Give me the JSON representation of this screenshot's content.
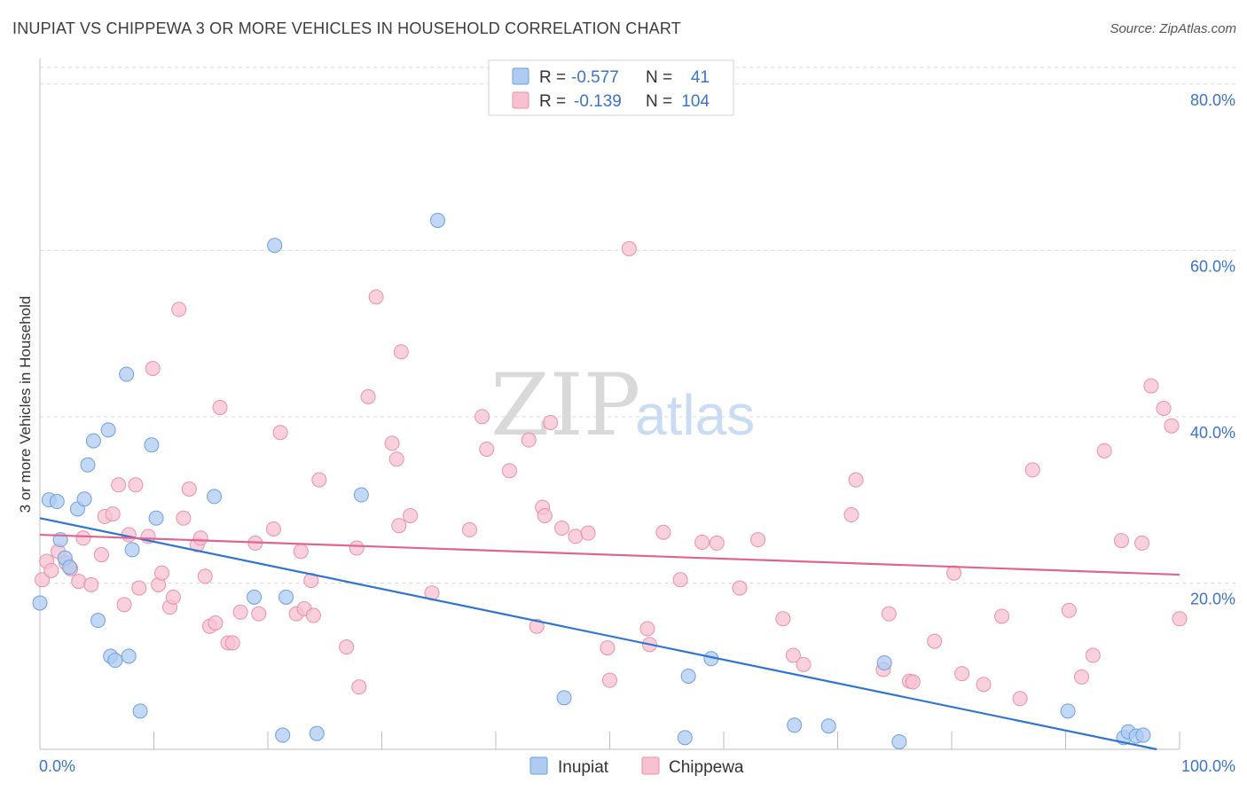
{
  "title": "INUPIAT VS CHIPPEWA 3 OR MORE VEHICLES IN HOUSEHOLD CORRELATION CHART",
  "source": "Source: ZipAtlas.com",
  "watermark": {
    "zip": "ZIP",
    "atlas": "atlas"
  },
  "colors": {
    "inupiat_fill": "#aecbf2",
    "inupiat_stroke": "#6f9fdc",
    "inupiat_line": "#2f74d0",
    "chippewa_fill": "#f7c1d1",
    "chippewa_stroke": "#e98fab",
    "chippewa_line": "#e0648f",
    "grid": "#d9d9d9",
    "axis_text": "#3b73c8"
  },
  "legend": {
    "rows": [
      {
        "r_label": "R =",
        "r_value": "-0.577",
        "n_label": "N =",
        "n_value": "41"
      },
      {
        "r_label": "R =",
        "r_value": "-0.139",
        "n_label": "N =",
        "n_value": "104"
      }
    ]
  },
  "bottom_legend": [
    "Inupiat",
    "Chippewa"
  ],
  "chart_data": {
    "type": "scatter",
    "title": "INUPIAT VS CHIPPEWA 3 OR MORE VEHICLES IN HOUSEHOLD CORRELATION CHART",
    "xlabel": "",
    "ylabel": "3 or more Vehicles in Household",
    "xlim": [
      0,
      100
    ],
    "ylim": [
      0,
      82
    ],
    "x_tick_labels": [
      "0.0%",
      "100.0%"
    ],
    "y_ticks": [
      20,
      40,
      60,
      80
    ],
    "y_tick_labels": [
      "20.0%",
      "40.0%",
      "60.0%",
      "80.0%"
    ],
    "grid": true,
    "legend_position": "top-center",
    "series": [
      {
        "name": "Inupiat",
        "trend": {
          "x": [
            0,
            98
          ],
          "y": [
            27.8,
            0.0
          ]
        },
        "points": [
          [
            0.0,
            17.6
          ],
          [
            0.8,
            30.0
          ],
          [
            1.5,
            29.8
          ],
          [
            1.8,
            25.2
          ],
          [
            2.2,
            23.0
          ],
          [
            2.6,
            21.9
          ],
          [
            3.3,
            28.9
          ],
          [
            3.9,
            30.1
          ],
          [
            4.2,
            34.2
          ],
          [
            4.7,
            37.1
          ],
          [
            5.1,
            15.5
          ],
          [
            6.0,
            38.4
          ],
          [
            6.2,
            11.2
          ],
          [
            6.6,
            10.7
          ],
          [
            7.8,
            11.2
          ],
          [
            7.6,
            45.1
          ],
          [
            8.1,
            24.0
          ],
          [
            8.8,
            4.6
          ],
          [
            9.8,
            36.6
          ],
          [
            10.2,
            27.8
          ],
          [
            15.3,
            30.4
          ],
          [
            18.8,
            18.3
          ],
          [
            20.6,
            60.6
          ],
          [
            21.3,
            1.7
          ],
          [
            21.6,
            18.3
          ],
          [
            24.3,
            1.9
          ],
          [
            28.2,
            30.6
          ],
          [
            34.9,
            63.6
          ],
          [
            46.0,
            6.2
          ],
          [
            56.6,
            1.4
          ],
          [
            56.9,
            8.8
          ],
          [
            58.9,
            10.9
          ],
          [
            66.2,
            2.9
          ],
          [
            69.2,
            2.8
          ],
          [
            74.1,
            10.4
          ],
          [
            75.4,
            0.9
          ],
          [
            90.2,
            4.6
          ],
          [
            95.1,
            1.4
          ],
          [
            95.5,
            2.1
          ],
          [
            96.2,
            1.6
          ],
          [
            96.8,
            1.7
          ]
        ]
      },
      {
        "name": "Chippewa",
        "trend": {
          "x": [
            0,
            100
          ],
          "y": [
            25.8,
            21.0
          ]
        },
        "points": [
          [
            0.2,
            20.4
          ],
          [
            0.6,
            22.6
          ],
          [
            1.0,
            21.5
          ],
          [
            1.6,
            23.8
          ],
          [
            2.3,
            22.4
          ],
          [
            2.7,
            21.7
          ],
          [
            3.4,
            20.2
          ],
          [
            3.8,
            25.4
          ],
          [
            4.5,
            19.8
          ],
          [
            5.4,
            23.4
          ],
          [
            5.7,
            28.0
          ],
          [
            6.4,
            28.3
          ],
          [
            6.9,
            31.8
          ],
          [
            7.4,
            17.4
          ],
          [
            7.8,
            25.8
          ],
          [
            8.4,
            31.8
          ],
          [
            8.7,
            19.4
          ],
          [
            9.5,
            25.6
          ],
          [
            9.9,
            45.8
          ],
          [
            10.4,
            19.8
          ],
          [
            10.7,
            21.2
          ],
          [
            11.4,
            17.1
          ],
          [
            11.7,
            18.3
          ],
          [
            12.2,
            52.9
          ],
          [
            12.6,
            27.8
          ],
          [
            13.1,
            31.3
          ],
          [
            13.8,
            24.6
          ],
          [
            14.1,
            25.4
          ],
          [
            14.5,
            20.8
          ],
          [
            14.9,
            14.8
          ],
          [
            15.4,
            15.2
          ],
          [
            15.8,
            41.1
          ],
          [
            16.5,
            12.8
          ],
          [
            16.9,
            12.8
          ],
          [
            17.6,
            16.5
          ],
          [
            18.9,
            24.8
          ],
          [
            19.2,
            16.3
          ],
          [
            20.5,
            26.5
          ],
          [
            21.1,
            38.1
          ],
          [
            22.5,
            16.3
          ],
          [
            22.9,
            23.8
          ],
          [
            23.2,
            16.9
          ],
          [
            23.8,
            20.3
          ],
          [
            24.0,
            16.1
          ],
          [
            24.5,
            32.4
          ],
          [
            26.9,
            12.3
          ],
          [
            27.8,
            24.2
          ],
          [
            28.0,
            7.5
          ],
          [
            28.8,
            42.4
          ],
          [
            29.5,
            54.4
          ],
          [
            30.9,
            36.8
          ],
          [
            31.3,
            34.9
          ],
          [
            31.5,
            26.9
          ],
          [
            31.7,
            47.8
          ],
          [
            32.5,
            28.1
          ],
          [
            34.4,
            18.8
          ],
          [
            37.7,
            26.4
          ],
          [
            38.8,
            40.0
          ],
          [
            39.2,
            36.1
          ],
          [
            41.2,
            33.5
          ],
          [
            42.9,
            37.2
          ],
          [
            43.6,
            14.8
          ],
          [
            44.1,
            29.1
          ],
          [
            44.3,
            28.1
          ],
          [
            44.8,
            39.3
          ],
          [
            45.8,
            26.6
          ],
          [
            47.0,
            25.6
          ],
          [
            48.1,
            26.0
          ],
          [
            49.8,
            12.2
          ],
          [
            50.0,
            8.3
          ],
          [
            51.7,
            60.2
          ],
          [
            53.3,
            14.5
          ],
          [
            53.5,
            12.6
          ],
          [
            54.7,
            26.1
          ],
          [
            56.2,
            20.4
          ],
          [
            58.1,
            24.9
          ],
          [
            59.4,
            24.8
          ],
          [
            61.4,
            19.4
          ],
          [
            63.0,
            25.2
          ],
          [
            65.2,
            15.7
          ],
          [
            66.1,
            11.3
          ],
          [
            67.0,
            10.2
          ],
          [
            71.2,
            28.2
          ],
          [
            71.6,
            32.4
          ],
          [
            74.0,
            9.6
          ],
          [
            74.5,
            16.3
          ],
          [
            76.3,
            8.2
          ],
          [
            76.6,
            8.1
          ],
          [
            78.5,
            13.0
          ],
          [
            80.2,
            21.2
          ],
          [
            80.9,
            9.1
          ],
          [
            82.8,
            7.8
          ],
          [
            84.4,
            16.0
          ],
          [
            86.0,
            6.1
          ],
          [
            87.1,
            33.6
          ],
          [
            90.3,
            16.7
          ],
          [
            91.4,
            8.7
          ],
          [
            92.4,
            11.3
          ],
          [
            93.4,
            35.9
          ],
          [
            94.9,
            25.1
          ],
          [
            96.7,
            24.8
          ],
          [
            97.5,
            43.7
          ],
          [
            98.6,
            41.0
          ],
          [
            99.3,
            38.9
          ],
          [
            100.0,
            15.7
          ]
        ]
      }
    ]
  }
}
